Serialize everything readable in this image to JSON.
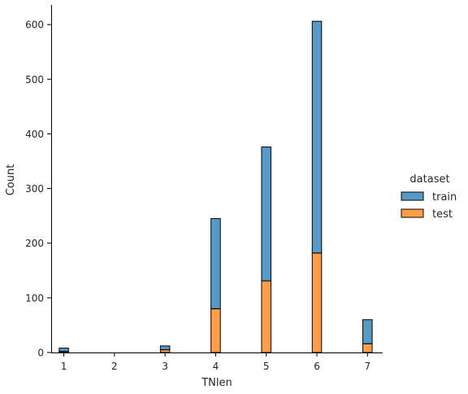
{
  "chart_data": {
    "type": "bar",
    "stacked": true,
    "xlabel": "TNlen",
    "ylabel": "Count",
    "x_ticks": [
      1,
      2,
      3,
      4,
      5,
      6,
      7
    ],
    "y_ticks": [
      0,
      100,
      200,
      300,
      400,
      500,
      600
    ],
    "xlim": [
      0.75,
      7.3
    ],
    "ylim": [
      0,
      636
    ],
    "x": [
      1,
      3,
      4,
      5,
      6,
      7
    ],
    "series": [
      {
        "name": "test",
        "color": "#ff7f0e",
        "values": [
          2,
          5,
          80,
          131,
          182,
          16
        ]
      },
      {
        "name": "train",
        "color": "#1f77b4",
        "values": [
          6,
          7,
          165,
          245,
          424,
          44
        ]
      }
    ],
    "legend": {
      "title": "dataset",
      "placement": "right",
      "entries": [
        {
          "label": "train",
          "color": "#1f77b4"
        },
        {
          "label": "test",
          "color": "#ff7f0e"
        }
      ]
    },
    "grid": false
  }
}
